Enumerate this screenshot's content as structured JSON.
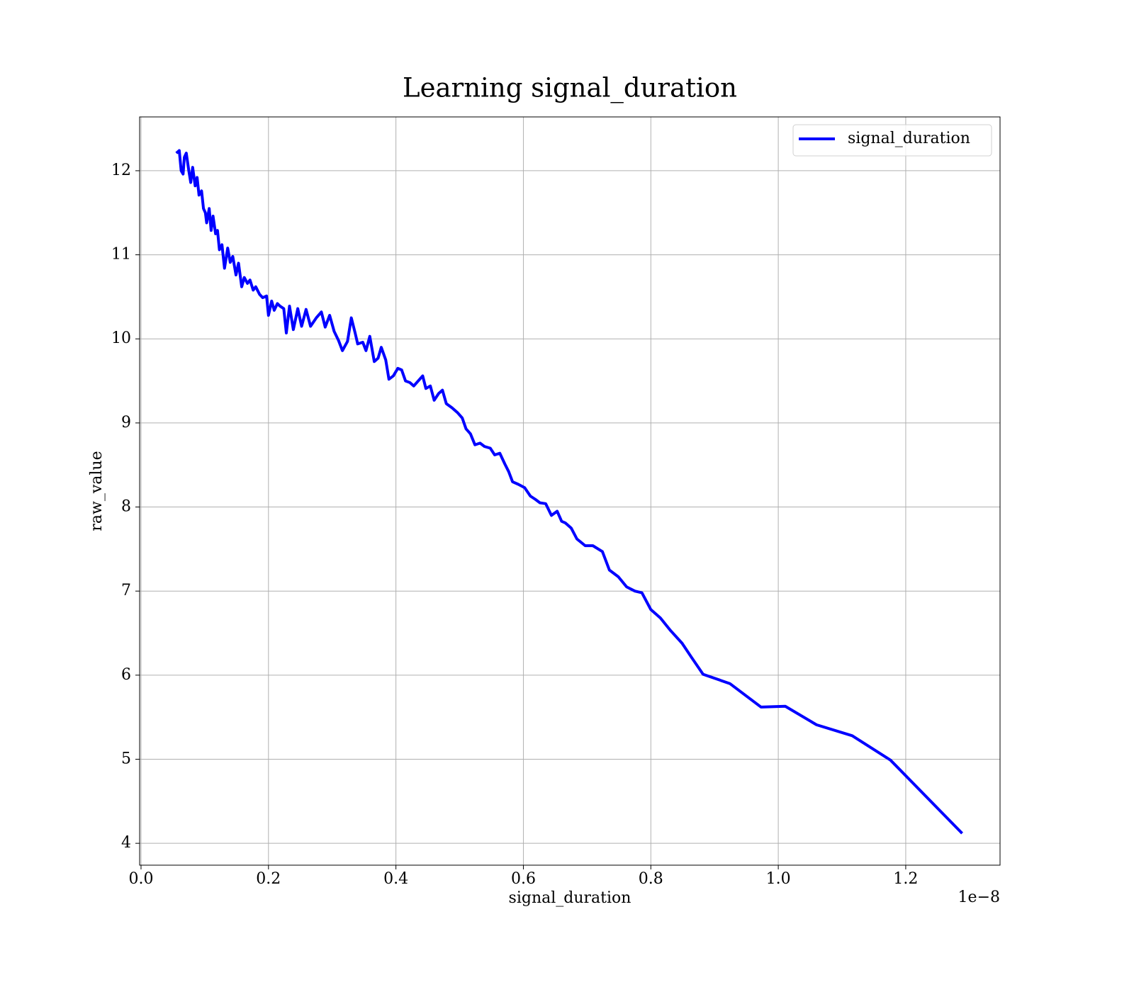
{
  "chart_data": {
    "type": "line",
    "title": "Learning signal_duration",
    "xlabel": "signal_duration",
    "ylabel": "raw_value",
    "x_offset_label": "1e−8",
    "grid": true,
    "legend": "upper right",
    "xlim": [
      -0.0022,
      1.348
    ],
    "ylim": [
      3.74,
      12.64
    ],
    "xticks": [
      {
        "value": 0,
        "label": "0.0"
      },
      0.2,
      0.4,
      0.6,
      0.8,
      {
        "value": 1,
        "label": "1.0"
      },
      1.2
    ],
    "yticks": [
      4,
      5,
      6,
      7,
      8,
      9,
      10,
      11,
      12
    ],
    "x": [
      0.057,
      0.06,
      0.063,
      0.066,
      0.068,
      0.071,
      0.075,
      0.078,
      0.081,
      0.085,
      0.088,
      0.091,
      0.095,
      0.098,
      0.101,
      0.103,
      0.107,
      0.11,
      0.113,
      0.117,
      0.12,
      0.123,
      0.127,
      0.131,
      0.136,
      0.14,
      0.144,
      0.149,
      0.153,
      0.158,
      0.162,
      0.167,
      0.171,
      0.176,
      0.18,
      0.186,
      0.191,
      0.197,
      0.2,
      0.205,
      0.209,
      0.214,
      0.218,
      0.224,
      0.228,
      0.233,
      0.239,
      0.246,
      0.252,
      0.259,
      0.266,
      0.275,
      0.283,
      0.289,
      0.296,
      0.303,
      0.31,
      0.316,
      0.324,
      0.33,
      0.336,
      0.34,
      0.348,
      0.353,
      0.359,
      0.366,
      0.372,
      0.377,
      0.384,
      0.389,
      0.396,
      0.403,
      0.409,
      0.415,
      0.422,
      0.428,
      0.435,
      0.442,
      0.447,
      0.454,
      0.46,
      0.467,
      0.473,
      0.479,
      0.488,
      0.497,
      0.504,
      0.51,
      0.517,
      0.524,
      0.532,
      0.539,
      0.548,
      0.555,
      0.563,
      0.571,
      0.577,
      0.583,
      0.592,
      0.602,
      0.611,
      0.619,
      0.626,
      0.635,
      0.644,
      0.653,
      0.66,
      0.666,
      0.675,
      0.684,
      0.697,
      0.709,
      0.724,
      0.735,
      0.749,
      0.762,
      0.775,
      0.786,
      0.8,
      0.815,
      0.831,
      0.849,
      0.864,
      0.882,
      0.924,
      0.973,
      1.011,
      1.06,
      1.116,
      1.176,
      1.287
    ],
    "series": [
      {
        "name": "signal_duration",
        "color": "#0000ff",
        "values": [
          12.22,
          12.24,
          12.0,
          11.96,
          12.16,
          12.21,
          12.0,
          11.86,
          12.04,
          11.82,
          11.92,
          11.71,
          11.76,
          11.55,
          11.5,
          11.38,
          11.55,
          11.29,
          11.46,
          11.25,
          11.29,
          11.06,
          11.12,
          10.84,
          11.08,
          10.91,
          10.98,
          10.76,
          10.9,
          10.62,
          10.73,
          10.66,
          10.7,
          10.58,
          10.62,
          10.53,
          10.49,
          10.51,
          10.28,
          10.45,
          10.34,
          10.42,
          10.39,
          10.36,
          10.07,
          10.39,
          10.11,
          10.36,
          10.15,
          10.35,
          10.15,
          10.25,
          10.32,
          10.14,
          10.28,
          10.09,
          9.98,
          9.86,
          9.97,
          10.25,
          10.07,
          9.94,
          9.96,
          9.86,
          10.03,
          9.73,
          9.77,
          9.9,
          9.75,
          9.52,
          9.56,
          9.65,
          9.63,
          9.5,
          9.48,
          9.44,
          9.5,
          9.56,
          9.41,
          9.44,
          9.27,
          9.35,
          9.39,
          9.23,
          9.18,
          9.12,
          9.06,
          8.93,
          8.87,
          8.74,
          8.76,
          8.72,
          8.7,
          8.62,
          8.64,
          8.51,
          8.42,
          8.3,
          8.27,
          8.23,
          8.13,
          8.09,
          8.05,
          8.04,
          7.9,
          7.95,
          7.83,
          7.81,
          7.75,
          7.62,
          7.54,
          7.54,
          7.47,
          7.25,
          7.17,
          7.05,
          7.0,
          6.98,
          6.78,
          6.68,
          6.53,
          6.38,
          6.21,
          6.01,
          5.9,
          5.62,
          5.63,
          5.41,
          5.28,
          4.99,
          4.13
        ]
      }
    ]
  }
}
